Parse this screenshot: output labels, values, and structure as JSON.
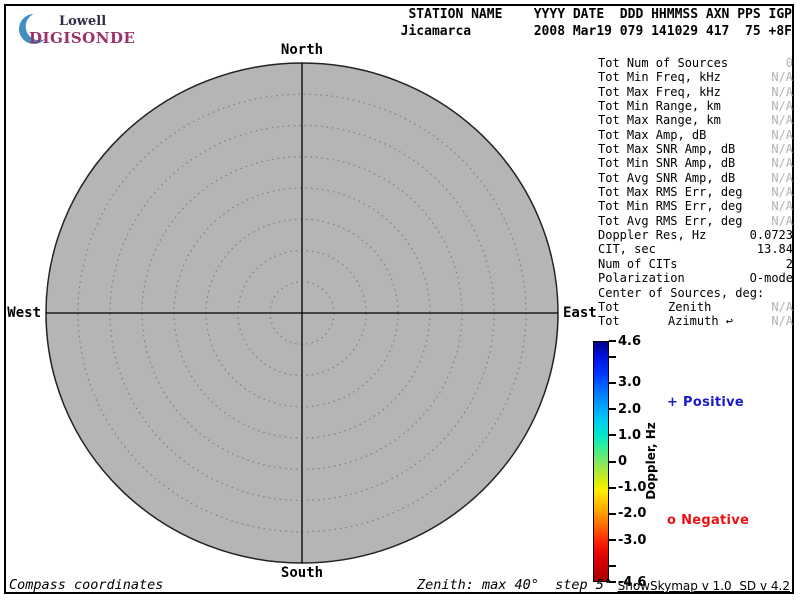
{
  "logo": {
    "name": "Lowell",
    "product": "DIGISONDE",
    "brand_color": "#9b3169",
    "arc_color": "#3f8fbf"
  },
  "header": {
    "line1": " STATION NAME    YYYY DATE  DDD HHMMSS AXN PPS IGP",
    "line2": "Jicamarca        2008 Mar19 079 141029 417  75 +8F"
  },
  "compass": {
    "north": "North",
    "south": "South",
    "east": "East",
    "west": "West"
  },
  "plot": {
    "type": "polar-skymap",
    "fill_color": "#b5b5b5",
    "ring_color": "#7d7d7d",
    "max_zenith_deg": 40,
    "step_deg": 5,
    "num_sources": 0
  },
  "info_table": {
    "muted_color": "#b3b3b3",
    "rows": [
      {
        "label": "Tot Num of Sources",
        "value": "0",
        "muted": true
      },
      {
        "label": "Tot Min Freq, kHz",
        "value": "N/A",
        "muted": true
      },
      {
        "label": "Tot Max Freq, kHz",
        "value": "N/A",
        "muted": true
      },
      {
        "label": "Tot Min Range, km",
        "value": "N/A",
        "muted": true
      },
      {
        "label": "Tot Max Range, km",
        "value": "N/A",
        "muted": true
      },
      {
        "label": "Tot Max Amp, dB",
        "value": "N/A",
        "muted": true
      },
      {
        "label": "Tot Max SNR Amp, dB",
        "value": "N/A",
        "muted": true
      },
      {
        "label": "Tot Min SNR Amp, dB",
        "value": "N/A",
        "muted": true
      },
      {
        "label": "Tot Avg SNR Amp, dB",
        "value": "N/A",
        "muted": true
      },
      {
        "label": "Tot Max RMS Err, deg",
        "value": "N/A",
        "muted": true
      },
      {
        "label": "Tot Min RMS Err, deg",
        "value": "N/A",
        "muted": true
      },
      {
        "label": "Tot Avg RMS Err, deg",
        "value": "N/A",
        "muted": true
      },
      {
        "label": "Doppler Res, Hz",
        "value": "0.0723",
        "muted": false
      },
      {
        "label": "CIT, sec",
        "value": "13.84",
        "muted": false
      },
      {
        "label": "Num of CITs",
        "value": "2",
        "muted": false
      },
      {
        "label": "Polarization",
        "value": "O-mode",
        "muted": false
      },
      {
        "label": "Center of Sources, deg:",
        "value": "",
        "muted": false
      },
      {
        "label": "Tot",
        "mid": "Zenith",
        "value": "N/A",
        "muted": true
      },
      {
        "label": "Tot",
        "mid": "Azimuth ↩",
        "value": "N/A",
        "muted": true
      }
    ]
  },
  "colorbar": {
    "title": "Doppler, Hz",
    "min": -4.6,
    "max": 4.6,
    "ticks": [
      {
        "v": 4.6,
        "label": "4.6"
      },
      {
        "v": 4.0,
        "label": ""
      },
      {
        "v": 3.0,
        "label": "3.0"
      },
      {
        "v": 2.0,
        "label": "2.0"
      },
      {
        "v": 1.0,
        "label": "1.0"
      },
      {
        "v": 0,
        "label": "0"
      },
      {
        "v": -1.0,
        "label": "-1.0"
      },
      {
        "v": -2.0,
        "label": "-2.0"
      },
      {
        "v": -3.0,
        "label": "-3.0"
      },
      {
        "v": -4.0,
        "label": ""
      },
      {
        "v": -4.6,
        "label": "-4.6"
      }
    ],
    "gradient": [
      [
        "#000088",
        0
      ],
      [
        "#0011dd",
        6
      ],
      [
        "#0033ff",
        13
      ],
      [
        "#0077ff",
        21
      ],
      [
        "#00aaff",
        28
      ],
      [
        "#00ccee",
        33
      ],
      [
        "#00e8cc",
        39
      ],
      [
        "#33ee99",
        44
      ],
      [
        "#7de862",
        50
      ],
      [
        "#b8e833",
        55
      ],
      [
        "#e8ee00",
        60
      ],
      [
        "#ffee00",
        62
      ],
      [
        "#ffbb00",
        68
      ],
      [
        "#ff9900",
        72
      ],
      [
        "#ff6600",
        77
      ],
      [
        "#ff3300",
        82
      ],
      [
        "#f01000",
        86
      ],
      [
        "#d40000",
        92
      ],
      [
        "#a80000",
        100
      ]
    ]
  },
  "legend": {
    "positive": {
      "marker": "+",
      "label": "Positive",
      "color": "#1a1acd"
    },
    "negative": {
      "marker": "o",
      "label": "Negative",
      "color": "#ee1111"
    }
  },
  "footer": {
    "left": "Compass coordinates",
    "center": "Zenith: max 40°  step 5°",
    "right": "ShowSkymap v 1.0  SD v 4.2"
  }
}
